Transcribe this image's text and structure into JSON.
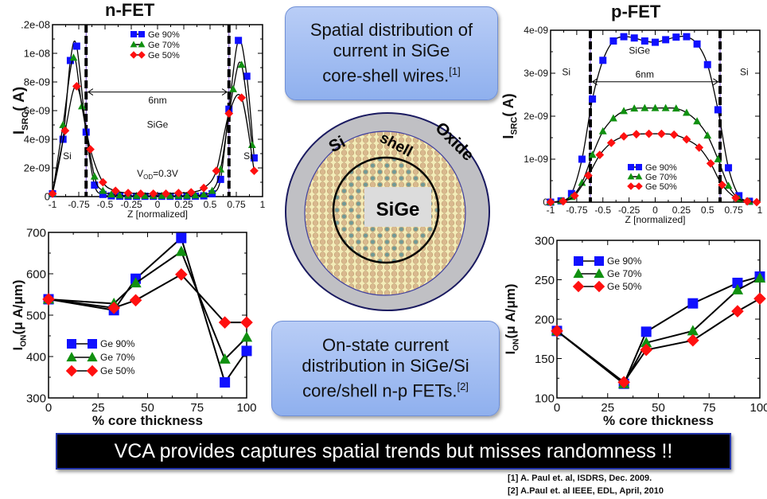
{
  "titles": {
    "nfet": "n-FET",
    "pfet": "p-FET"
  },
  "callouts": {
    "top": [
      "Spatial distribution of",
      "current in SiGe",
      "core-shell wires."
    ],
    "top_ref": "[1]",
    "bottom": [
      "On-state current",
      "distribution in SiGe/Si",
      "core/shell n-p FETs."
    ],
    "bottom_ref": "[2]"
  },
  "diagram": {
    "labels": {
      "oxide": "Oxide",
      "shell": "shell",
      "si": "Si",
      "core": "SiGe"
    },
    "colors": {
      "oxide": "#c0c0c4",
      "si_atom": "#d9b98e",
      "ge_atom": "#4f8f96",
      "shell_fill": "#f3ecb8"
    }
  },
  "banner": "VCA provides captures spatial trends but misses randomness !!",
  "references": [
    "[1] A. Paul et. al, ISDRS, Dec. 2009.",
    "[2] A.Paul et. al IEEE, EDL, April, 2010"
  ],
  "series_colors": {
    "Ge 90%": "#1010ff",
    "Ge 70%": "#109010",
    "Ge 50%": "#ff1010"
  },
  "chart_data": [
    {
      "id": "nfet-isrc",
      "type": "line",
      "title": "n-FET",
      "xlabel": "Z [normalized]",
      "ylabel": "I_SRC( A)",
      "xlim": [
        -1,
        1
      ],
      "ylim": [
        0,
        1.2e-08
      ],
      "xticks": [
        "-1",
        "-0.75",
        "-0.5",
        "-0.25",
        "0",
        "0.25",
        "0.5",
        "0.75",
        "1"
      ],
      "yticks": [
        "0",
        "2e-09",
        "4e-09",
        "6e-09",
        "8e-09",
        "1e-08",
        ".2e-08"
      ],
      "legend": "top-center",
      "annotations": [
        "6nm",
        "SiGe",
        "Si",
        "Si",
        "V_OD=0.3V"
      ],
      "boundaries": [
        -0.68,
        0.68
      ],
      "series": [
        {
          "name": "Ge 90%",
          "marker": "square",
          "x": [
            -1,
            -0.9,
            -0.83,
            -0.77,
            -0.68,
            -0.6,
            -0.52,
            -0.44,
            -0.36,
            -0.28,
            -0.2,
            -0.12,
            -0.04,
            0.04,
            0.12,
            0.2,
            0.28,
            0.36,
            0.44,
            0.52,
            0.6,
            0.68,
            0.77,
            0.85,
            0.92
          ],
          "y": [
            2e-10,
            4e-09,
            9.5e-09,
            1.05e-08,
            4.5e-09,
            8e-10,
            1.5e-10,
            5e-11,
            3e-11,
            2e-11,
            2e-11,
            2e-11,
            2e-11,
            2e-11,
            2e-11,
            2e-11,
            2e-11,
            3e-11,
            5e-11,
            2e-10,
            1.2e-09,
            6.1e-09,
            1.09e-08,
            8.4e-09,
            2.7e-09
          ]
        },
        {
          "name": "Ge 70%",
          "marker": "triangle",
          "x": [
            -1,
            -0.9,
            -0.8,
            -0.72,
            -0.6,
            -0.52,
            -0.44,
            -0.36,
            -0.28,
            -0.2,
            -0.12,
            -0.04,
            0.04,
            0.12,
            0.2,
            0.28,
            0.36,
            0.44,
            0.52,
            0.6,
            0.72,
            0.8,
            0.9
          ],
          "y": [
            2e-10,
            5e-09,
            9.7e-09,
            6.3e-09,
            1.4e-09,
            4e-10,
            1.5e-10,
            8e-11,
            6e-11,
            5e-11,
            5e-11,
            5e-11,
            5e-11,
            5e-11,
            5e-11,
            6e-11,
            8e-11,
            1.5e-10,
            4e-10,
            1.9e-09,
            7.5e-09,
            9.2e-09,
            3.6e-09
          ]
        },
        {
          "name": "Ge 50%",
          "marker": "diamond",
          "x": [
            -1,
            -0.88,
            -0.77,
            -0.64,
            -0.52,
            -0.4,
            -0.28,
            -0.16,
            -0.04,
            0.08,
            0.2,
            0.32,
            0.44,
            0.56,
            0.68,
            0.8,
            0.92
          ],
          "y": [
            2e-10,
            4.6e-09,
            7.7e-09,
            3.3e-09,
            1e-09,
            4e-10,
            2.5e-10,
            2e-10,
            2e-10,
            2e-10,
            2.5e-10,
            3e-10,
            6e-10,
            1.8e-09,
            5.8e-09,
            6.9e-09,
            1.8e-09
          ]
        }
      ]
    },
    {
      "id": "pfet-isrc",
      "type": "line",
      "title": "p-FET",
      "xlabel": "Z [normalized]",
      "ylabel": "I_SRC( A)",
      "xlim": [
        -1,
        1
      ],
      "ylim": [
        0,
        4e-09
      ],
      "xticks": [
        "-1",
        "-0.75",
        "-0.5",
        "-0.25",
        "0",
        "0.25",
        "0.5",
        "0.75",
        "1"
      ],
      "yticks": [
        "0",
        "1e-09",
        "2e-09",
        "3e-09",
        "4e-09"
      ],
      "legend": "bottom-center",
      "annotations": [
        "SiGe",
        "6nm",
        "Si",
        "Si"
      ],
      "boundaries": [
        -0.62,
        0.62
      ],
      "series": [
        {
          "name": "Ge 90%",
          "marker": "square",
          "x": [
            -1,
            -0.9,
            -0.8,
            -0.7,
            -0.6,
            -0.5,
            -0.4,
            -0.3,
            -0.2,
            -0.1,
            0,
            0.1,
            0.2,
            0.3,
            0.4,
            0.5,
            0.6,
            0.7,
            0.8,
            0.9
          ],
          "y": [
            0.0,
            3e-11,
            2e-10,
            1e-09,
            2.4e-09,
            3.3e-09,
            3.75e-09,
            3.85e-09,
            3.82e-09,
            3.75e-09,
            3.72e-09,
            3.78e-09,
            3.84e-09,
            3.85e-09,
            3.68e-09,
            3.2e-09,
            2.15e-09,
            8e-10,
            1.5e-10,
            2e-11
          ]
        },
        {
          "name": "Ge 70%",
          "marker": "triangle",
          "x": [
            -1,
            -0.9,
            -0.8,
            -0.7,
            -0.6,
            -0.5,
            -0.4,
            -0.3,
            -0.2,
            -0.1,
            0,
            0.1,
            0.2,
            0.3,
            0.4,
            0.5,
            0.6,
            0.7,
            0.8,
            0.9
          ],
          "y": [
            0.0,
            3e-11,
            1.2e-10,
            4.5e-10,
            1.1e-09,
            1.65e-09,
            1.95e-09,
            2.12e-09,
            2.18e-09,
            2.19e-09,
            2.19e-09,
            2.19e-09,
            2.18e-09,
            2.08e-09,
            1.88e-09,
            1.55e-09,
            1e-09,
            3.8e-10,
            8e-11,
            1e-11
          ]
        },
        {
          "name": "Ge 50%",
          "marker": "diamond",
          "x": [
            -1,
            -0.88,
            -0.77,
            -0.64,
            -0.53,
            -0.42,
            -0.3,
            -0.18,
            -0.06,
            0.06,
            0.18,
            0.3,
            0.42,
            0.53,
            0.64,
            0.77,
            0.88,
            0.97
          ],
          "y": [
            0.0,
            2e-11,
            1.5e-10,
            6.2e-10,
            1.1e-09,
            1.38e-09,
            1.53e-09,
            1.58e-09,
            1.59e-09,
            1.59e-09,
            1.57e-09,
            1.46e-09,
            1.27e-09,
            9e-10,
            4e-10,
            1e-10,
            2e-11,
            0.0
          ]
        }
      ]
    },
    {
      "id": "nfet-ion",
      "type": "line",
      "title": "",
      "xlabel": "% core thickness",
      "ylabel": "I_ON(μ A/μm)",
      "xlim": [
        0,
        100
      ],
      "ylim": [
        250,
        750
      ],
      "xticks": [
        "0",
        "25",
        "50",
        "75",
        "100"
      ],
      "yticks": [
        "300",
        "400",
        "500",
        "600",
        "700"
      ],
      "legend": "bottom-left",
      "series": [
        {
          "name": "Ge 90%",
          "marker": "square",
          "x": [
            0,
            33,
            44,
            67,
            89,
            100
          ],
          "y": [
            548,
            515,
            610,
            733,
            297,
            392
          ]
        },
        {
          "name": "Ge 70%",
          "marker": "triangle",
          "x": [
            0,
            33,
            44,
            67,
            89,
            100
          ],
          "y": [
            548,
            535,
            597,
            692,
            367,
            433
          ]
        },
        {
          "name": "Ge 50%",
          "marker": "diamond",
          "x": [
            0,
            33,
            44,
            67,
            89,
            100
          ],
          "y": [
            548,
            522,
            545,
            623,
            478,
            478
          ]
        }
      ]
    },
    {
      "id": "pfet-ion",
      "type": "line",
      "title": "",
      "xlabel": "% core thickness",
      "ylabel": "I_ON(μ A/μm)",
      "xlim": [
        0,
        100
      ],
      "ylim": [
        100,
        300
      ],
      "xticks": [
        "0",
        "25",
        "50",
        "75",
        "100"
      ],
      "yticks": [
        "100",
        "150",
        "200",
        "250",
        "300"
      ],
      "legend": "top-left",
      "series": [
        {
          "name": "Ge 90%",
          "marker": "square",
          "x": [
            0,
            33,
            44,
            67,
            89,
            100
          ],
          "y": [
            185,
            118,
            184,
            220,
            246,
            254
          ]
        },
        {
          "name": "Ge 70%",
          "marker": "triangle",
          "x": [
            0,
            33,
            44,
            67,
            89,
            100
          ],
          "y": [
            185,
            118,
            170,
            185,
            237,
            252
          ]
        },
        {
          "name": "Ge 50%",
          "marker": "diamond",
          "x": [
            0,
            33,
            44,
            67,
            89,
            100
          ],
          "y": [
            185,
            120,
            161,
            173,
            210,
            226
          ]
        }
      ]
    }
  ]
}
